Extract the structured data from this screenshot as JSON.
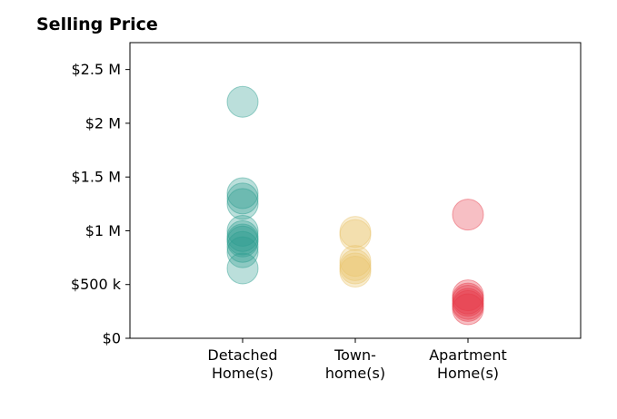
{
  "chart_data": {
    "type": "scatter",
    "title": "Selling Price",
    "xlabel": "",
    "ylabel": "",
    "categories": [
      [
        "Detached",
        "Home(s)"
      ],
      [
        "Town-",
        "home(s)"
      ],
      [
        "Apartment",
        "Home(s)"
      ]
    ],
    "ylim": [
      0,
      2750000
    ],
    "y_ticks": [
      0,
      500000,
      1000000,
      1500000,
      2000000,
      2500000
    ],
    "y_tick_labels": [
      "$0",
      "$500 k",
      "$1 M",
      "$1.5 M",
      "$2 M",
      "$2.5 M"
    ],
    "grid": false,
    "series": [
      {
        "category": "Detached Home(s)",
        "color": "#2a9d8f",
        "values": [
          2200000,
          1350000,
          1300000,
          1250000,
          1000000,
          950000,
          920000,
          900000,
          850000,
          800000,
          650000
        ]
      },
      {
        "category": "Town-home(s)",
        "color": "#e9c46a",
        "values": [
          990000,
          960000,
          720000,
          680000,
          650000,
          620000
        ]
      },
      {
        "category": "Apartment Home(s)",
        "color": "#e63946",
        "values": [
          1150000,
          400000,
          370000,
          350000,
          320000,
          300000,
          270000
        ]
      }
    ]
  }
}
